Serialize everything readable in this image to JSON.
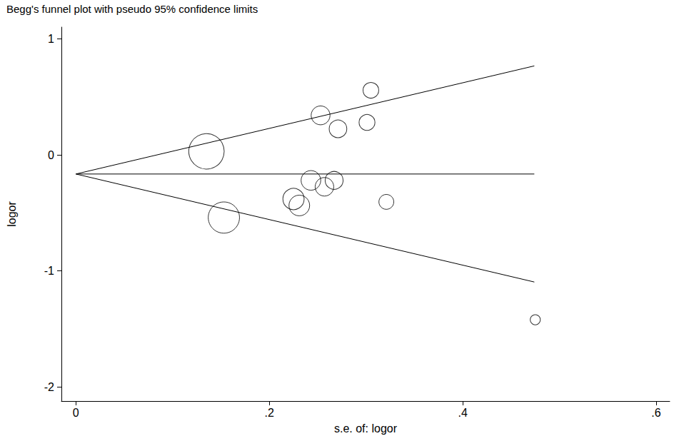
{
  "chart_data": {
    "type": "scatter",
    "title": "Begg's funnel plot with pseudo 95% confidence limits",
    "x_label": "s.e. of: logor",
    "y_label": "logor",
    "x": [
      0.135,
      0.153,
      0.225,
      0.231,
      0.243,
      0.253,
      0.257,
      0.267,
      0.271,
      0.301,
      0.305,
      0.321,
      0.475
    ],
    "values": [
      0.03,
      -0.54,
      -0.38,
      -0.436,
      -0.22,
      0.34,
      -0.275,
      -0.22,
      0.224,
      0.279,
      0.556,
      -0.405,
      -1.42
    ],
    "marker": "hollow_circle",
    "color": "#000000",
    "lines": [
      {
        "x": [
          0,
          0.474
        ],
        "values": [
          -0.165,
          0.766
        ]
      },
      {
        "x": [
          0,
          0.474
        ],
        "values": [
          -0.165,
          -0.165
        ]
      },
      {
        "x": [
          0,
          0.474
        ],
        "values": [
          -0.165,
          -1.095
        ]
      }
    ],
    "xlim": [
      -0.015,
      0.614
    ],
    "ylim": [
      -2.12,
      1.1
    ],
    "xticks": [
      0,
      {
        "value": 0.2,
        "label": ".2"
      },
      {
        "value": 0.4,
        "label": ".4"
      },
      {
        "value": 0.6,
        "label": ".6"
      }
    ],
    "yticks": [
      -2,
      -1,
      0,
      1
    ],
    "grid": false
  }
}
